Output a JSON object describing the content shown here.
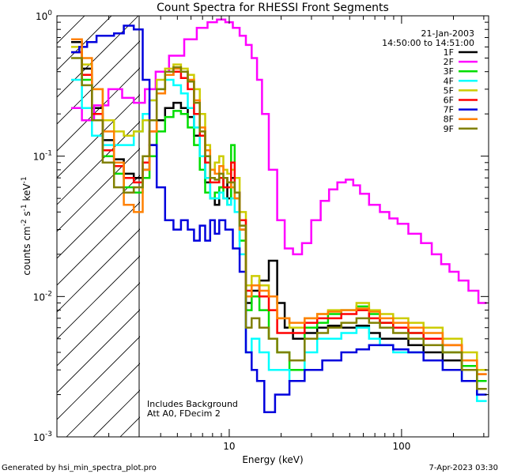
{
  "chart_data": {
    "type": "line",
    "title": "Count Spectra for RHESSI Front Segments",
    "xlabel": "Energy (keV)",
    "ylabel_parts": [
      "counts cm",
      "-2",
      " s",
      "-1",
      " keV",
      "-1"
    ],
    "xscale": "log",
    "yscale": "log",
    "xlim": [
      1.0,
      320
    ],
    "ylim": [
      0.001,
      1.0
    ],
    "x_ticks": [
      {
        "value": 10,
        "label": "10"
      },
      {
        "value": 100,
        "label": "100"
      }
    ],
    "y_ticks": [
      {
        "value": 1.0,
        "base": "10",
        "exp": "0"
      },
      {
        "value": 0.1,
        "base": "10",
        "exp": "-1"
      },
      {
        "value": 0.01,
        "base": "10",
        "exp": "-2"
      },
      {
        "value": 0.001,
        "base": "10",
        "exp": "-3"
      }
    ],
    "header_date": "21-Jan-2003",
    "header_time": "14:50:00 to 14:51:00",
    "excluded_region_max_kev": 3.0,
    "annotations": [
      "Includes Background",
      "Att A0, FDecim 2"
    ],
    "legend_position": "top-right",
    "series": [
      {
        "name": "1F",
        "color": "#000000",
        "x": [
          1.3,
          1.5,
          1.7,
          2.0,
          2.3,
          2.6,
          3.0,
          3.3,
          3.6,
          4.0,
          4.5,
          5.0,
          5.5,
          6.0,
          6.5,
          7.0,
          7.5,
          8.0,
          8.5,
          9.0,
          9.5,
          10.0,
          10.5,
          11.0,
          12.0,
          13.0,
          14.0,
          16.0,
          18.0,
          20.0,
          22.0,
          25.0,
          30.0,
          35.0,
          40.0,
          50.0,
          60.0,
          70.0,
          80.0,
          100.0,
          120.0,
          150.0,
          200.0,
          250.0,
          300.0
        ],
        "y": [
          0.65,
          0.42,
          0.22,
          0.13,
          0.095,
          0.075,
          0.07,
          0.08,
          0.12,
          0.18,
          0.22,
          0.24,
          0.22,
          0.19,
          0.14,
          0.1,
          0.065,
          0.05,
          0.045,
          0.06,
          0.07,
          0.05,
          0.07,
          0.055,
          0.03,
          0.009,
          0.011,
          0.013,
          0.018,
          0.009,
          0.006,
          0.005,
          0.0055,
          0.006,
          0.0062,
          0.006,
          0.0062,
          0.0055,
          0.005,
          0.005,
          0.0045,
          0.004,
          0.0035,
          0.003,
          0.0022
        ]
      },
      {
        "name": "2F",
        "color": "#ff00ff",
        "x": [
          1.3,
          1.5,
          1.8,
          2.2,
          2.6,
          3.0,
          3.5,
          4.0,
          5.0,
          6.0,
          7.0,
          8.0,
          9.0,
          10.0,
          11.0,
          12.0,
          13.0,
          14.0,
          15.0,
          16.0,
          18.0,
          20.0,
          22.0,
          25.0,
          28.0,
          32.0,
          36.0,
          40.0,
          45.0,
          50.0,
          55.0,
          60.0,
          70.0,
          80.0,
          90.0,
          100.0,
          120.0,
          140.0,
          160.0,
          180.0,
          200.0,
          230.0,
          260.0,
          300.0
        ],
        "y": [
          0.22,
          0.18,
          0.23,
          0.3,
          0.26,
          0.24,
          0.3,
          0.4,
          0.52,
          0.68,
          0.82,
          0.9,
          0.94,
          0.9,
          0.82,
          0.72,
          0.62,
          0.5,
          0.35,
          0.2,
          0.08,
          0.035,
          0.022,
          0.02,
          0.024,
          0.035,
          0.048,
          0.058,
          0.065,
          0.068,
          0.062,
          0.054,
          0.045,
          0.04,
          0.036,
          0.033,
          0.028,
          0.024,
          0.02,
          0.017,
          0.015,
          0.013,
          0.011,
          0.009
        ]
      },
      {
        "name": "3F",
        "color": "#00dd00",
        "x": [
          1.3,
          1.5,
          1.7,
          2.0,
          2.3,
          2.6,
          3.0,
          3.3,
          3.6,
          4.0,
          4.5,
          5.0,
          5.5,
          6.0,
          6.5,
          7.0,
          7.5,
          8.0,
          8.5,
          9.0,
          9.5,
          10.0,
          10.5,
          11.0,
          12.0,
          13.0,
          14.0,
          16.0,
          18.0,
          20.0,
          25.0,
          30.0,
          35.0,
          40.0,
          50.0,
          60.0,
          70.0,
          80.0,
          100.0,
          120.0,
          150.0,
          200.0,
          250.0,
          300.0
        ],
        "y": [
          0.55,
          0.35,
          0.18,
          0.1,
          0.075,
          0.06,
          0.055,
          0.07,
          0.1,
          0.15,
          0.19,
          0.21,
          0.2,
          0.16,
          0.12,
          0.08,
          0.055,
          0.05,
          0.055,
          0.06,
          0.05,
          0.045,
          0.12,
          0.05,
          0.025,
          0.008,
          0.01,
          0.008,
          0.005,
          0.004,
          0.003,
          0.006,
          0.0065,
          0.0075,
          0.008,
          0.0085,
          0.0075,
          0.0065,
          0.006,
          0.0055,
          0.005,
          0.004,
          0.0032,
          0.0025
        ]
      },
      {
        "name": "4F",
        "color": "#00ffff",
        "x": [
          1.3,
          1.5,
          1.7,
          2.0,
          2.3,
          2.6,
          3.0,
          3.3,
          3.6,
          4.0,
          4.5,
          5.0,
          5.5,
          6.0,
          6.5,
          7.0,
          7.5,
          8.0,
          8.5,
          9.0,
          9.5,
          10.0,
          10.5,
          11.0,
          12.0,
          13.0,
          14.0,
          16.0,
          18.0,
          20.0,
          25.0,
          30.0,
          35.0,
          40.0,
          50.0,
          60.0,
          70.0,
          80.0,
          100.0,
          120.0,
          150.0,
          200.0,
          250.0,
          300.0
        ],
        "y": [
          0.35,
          0.22,
          0.14,
          0.12,
          0.12,
          0.12,
          0.15,
          0.2,
          0.25,
          0.3,
          0.35,
          0.32,
          0.28,
          0.22,
          0.16,
          0.1,
          0.07,
          0.05,
          0.05,
          0.055,
          0.05,
          0.045,
          0.05,
          0.04,
          0.02,
          0.004,
          0.005,
          0.004,
          0.003,
          0.003,
          0.0025,
          0.004,
          0.005,
          0.005,
          0.0055,
          0.006,
          0.005,
          0.0045,
          0.004,
          0.004,
          0.0035,
          0.003,
          0.0025,
          0.0018
        ]
      },
      {
        "name": "5F",
        "color": "#cccc00",
        "x": [
          1.3,
          1.5,
          1.7,
          2.0,
          2.3,
          2.6,
          3.0,
          3.3,
          3.6,
          4.0,
          4.5,
          5.0,
          5.5,
          6.0,
          6.5,
          7.0,
          7.5,
          8.0,
          8.5,
          9.0,
          9.5,
          10.0,
          10.5,
          11.0,
          12.0,
          13.0,
          14.0,
          16.0,
          18.0,
          20.0,
          25.0,
          30.0,
          35.0,
          40.0,
          50.0,
          60.0,
          70.0,
          80.0,
          100.0,
          120.0,
          150.0,
          200.0,
          250.0,
          300.0
        ],
        "y": [
          0.6,
          0.45,
          0.3,
          0.18,
          0.15,
          0.14,
          0.15,
          0.18,
          0.25,
          0.35,
          0.42,
          0.45,
          0.42,
          0.38,
          0.3,
          0.2,
          0.12,
          0.08,
          0.09,
          0.1,
          0.08,
          0.075,
          0.08,
          0.07,
          0.04,
          0.012,
          0.014,
          0.012,
          0.01,
          0.007,
          0.006,
          0.007,
          0.0075,
          0.008,
          0.008,
          0.009,
          0.008,
          0.0075,
          0.007,
          0.0065,
          0.006,
          0.005,
          0.004,
          0.003
        ]
      },
      {
        "name": "6F",
        "color": "#ff0000",
        "x": [
          1.3,
          1.5,
          1.7,
          2.0,
          2.3,
          2.6,
          3.0,
          3.3,
          3.6,
          4.0,
          4.5,
          5.0,
          5.5,
          6.0,
          6.5,
          7.0,
          7.5,
          8.0,
          8.5,
          9.0,
          9.5,
          10.0,
          10.5,
          11.0,
          12.0,
          13.0,
          14.0,
          16.0,
          18.0,
          20.0,
          25.0,
          30.0,
          35.0,
          40.0,
          50.0,
          60.0,
          70.0,
          80.0,
          100.0,
          120.0,
          150.0,
          200.0,
          250.0,
          300.0
        ],
        "y": [
          0.55,
          0.38,
          0.2,
          0.11,
          0.085,
          0.07,
          0.065,
          0.09,
          0.15,
          0.28,
          0.38,
          0.4,
          0.36,
          0.3,
          0.2,
          0.14,
          0.09,
          0.065,
          0.065,
          0.07,
          0.06,
          0.06,
          0.09,
          0.055,
          0.035,
          0.011,
          0.012,
          0.01,
          0.008,
          0.0055,
          0.0055,
          0.0065,
          0.007,
          0.007,
          0.0075,
          0.008,
          0.007,
          0.0065,
          0.006,
          0.0055,
          0.005,
          0.0045,
          0.0035,
          0.0028
        ]
      },
      {
        "name": "7F",
        "color": "#0000dd",
        "x": [
          1.3,
          1.4,
          1.6,
          1.8,
          2.0,
          2.3,
          2.6,
          3.0,
          3.3,
          3.6,
          4.0,
          4.5,
          5.0,
          5.5,
          6.0,
          6.5,
          7.0,
          7.5,
          8.0,
          8.5,
          9.0,
          10.0,
          11.0,
          12.0,
          13.0,
          14.0,
          15.0,
          17.0,
          20.0,
          25.0,
          30.0,
          40.0,
          50.0,
          60.0,
          70.0,
          80.0,
          100.0,
          120.0,
          150.0,
          200.0,
          250.0,
          300.0
        ],
        "y": [
          0.55,
          0.6,
          0.65,
          0.72,
          0.72,
          0.75,
          0.85,
          0.8,
          0.35,
          0.12,
          0.06,
          0.035,
          0.03,
          0.035,
          0.03,
          0.025,
          0.032,
          0.025,
          0.035,
          0.028,
          0.035,
          0.03,
          0.022,
          0.015,
          0.004,
          0.003,
          0.0025,
          0.0015,
          0.002,
          0.0025,
          0.003,
          0.0035,
          0.004,
          0.0042,
          0.0045,
          0.0045,
          0.0042,
          0.004,
          0.0035,
          0.003,
          0.0025,
          0.002
        ]
      },
      {
        "name": "8F",
        "color": "#ff8000",
        "x": [
          1.3,
          1.5,
          1.7,
          2.0,
          2.3,
          2.6,
          3.0,
          3.3,
          3.6,
          4.0,
          4.5,
          5.0,
          5.5,
          6.0,
          6.5,
          7.0,
          7.5,
          8.0,
          8.5,
          9.0,
          9.5,
          10.0,
          10.5,
          11.0,
          12.0,
          13.0,
          14.0,
          16.0,
          18.0,
          20.0,
          25.0,
          30.0,
          35.0,
          40.0,
          50.0,
          60.0,
          70.0,
          80.0,
          100.0,
          120.0,
          150.0,
          200.0,
          250.0,
          300.0
        ],
        "y": [
          0.68,
          0.5,
          0.3,
          0.15,
          0.09,
          0.045,
          0.04,
          0.08,
          0.15,
          0.28,
          0.38,
          0.42,
          0.4,
          0.35,
          0.25,
          0.16,
          0.11,
          0.08,
          0.075,
          0.085,
          0.07,
          0.065,
          0.06,
          0.05,
          0.03,
          0.01,
          0.012,
          0.011,
          0.01,
          0.007,
          0.0065,
          0.007,
          0.0075,
          0.0078,
          0.008,
          0.0082,
          0.0078,
          0.007,
          0.0065,
          0.006,
          0.0055,
          0.0045,
          0.0035,
          0.0028
        ]
      },
      {
        "name": "9F",
        "color": "#808000",
        "x": [
          1.3,
          1.5,
          1.7,
          2.0,
          2.3,
          2.6,
          3.0,
          3.3,
          3.6,
          4.0,
          4.5,
          5.0,
          5.5,
          6.0,
          6.5,
          7.0,
          7.5,
          8.0,
          8.5,
          9.0,
          9.5,
          10.0,
          10.5,
          11.0,
          12.0,
          13.0,
          14.0,
          16.0,
          18.0,
          20.0,
          25.0,
          30.0,
          35.0,
          40.0,
          50.0,
          60.0,
          70.0,
          80.0,
          100.0,
          120.0,
          150.0,
          200.0,
          250.0,
          300.0
        ],
        "y": [
          0.5,
          0.32,
          0.18,
          0.09,
          0.06,
          0.055,
          0.06,
          0.1,
          0.18,
          0.3,
          0.4,
          0.43,
          0.4,
          0.34,
          0.24,
          0.15,
          0.1,
          0.07,
          0.068,
          0.075,
          0.07,
          0.065,
          0.065,
          0.055,
          0.032,
          0.006,
          0.007,
          0.006,
          0.005,
          0.004,
          0.0035,
          0.005,
          0.0055,
          0.006,
          0.0065,
          0.007,
          0.0065,
          0.006,
          0.0055,
          0.005,
          0.0045,
          0.004,
          0.003,
          0.0022
        ]
      }
    ]
  },
  "footer": {
    "generator": "Generated by hsi_min_spectra_plot.pro",
    "timestamp": "7-Apr-2023 03:30"
  }
}
